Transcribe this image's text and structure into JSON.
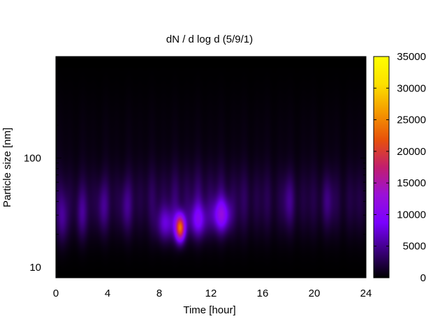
{
  "chart_data": {
    "type": "heatmap",
    "title": "dN / d log d (5/9/1)",
    "xlabel": "Time [hour]",
    "ylabel": "Particle size [nm]",
    "xlim": [
      0,
      24
    ],
    "ylim": [
      8,
      850
    ],
    "y_scale": "log",
    "x_ticks": [
      0,
      4,
      8,
      12,
      16,
      20,
      24
    ],
    "x_minor_ticks": [
      2,
      6,
      10,
      14,
      18,
      22
    ],
    "y_ticks": [
      10,
      100
    ],
    "colorbar": {
      "range": [
        0,
        35000
      ],
      "ticks": [
        0,
        5000,
        10000,
        15000,
        20000,
        25000,
        30000,
        35000
      ],
      "colors": [
        "#000000",
        "#3d0080",
        "#7a00ff",
        "#9b10d8",
        "#c21e6e",
        "#e8520a",
        "#f59a00",
        "#fde000",
        "#ffff00"
      ]
    },
    "data_top_nm": 680,
    "peak": {
      "time_hour": 9.6,
      "size_nm": 23,
      "value": 22000
    },
    "secondary_peaks": [
      {
        "time_hour": 12.8,
        "size_nm": 30,
        "value": 9000
      },
      {
        "time_hour": 11.0,
        "size_nm": 27,
        "value": 7000
      },
      {
        "time_hour": 8.5,
        "size_nm": 25,
        "value": 6000
      }
    ],
    "features": [
      {
        "time_hour": 0.5,
        "size_nm": 28,
        "value": 3500
      },
      {
        "time_hour": 2.0,
        "size_nm": 30,
        "value": 3000
      },
      {
        "time_hour": 3.6,
        "size_nm": 35,
        "value": 2800
      },
      {
        "time_hour": 5.4,
        "size_nm": 35,
        "value": 2500
      },
      {
        "time_hour": 18.0,
        "size_nm": 40,
        "value": 2500
      },
      {
        "time_hour": 21.0,
        "size_nm": 40,
        "value": 2200
      }
    ]
  }
}
